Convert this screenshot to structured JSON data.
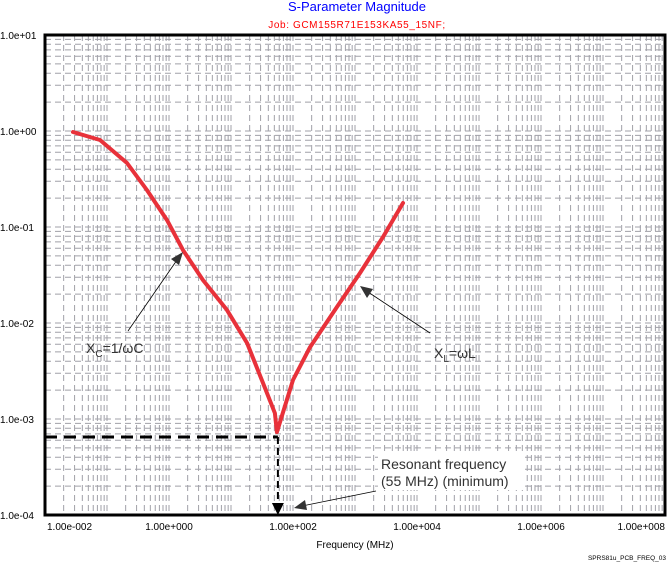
{
  "chart_data": {
    "type": "line",
    "title": "S-Parameter Magnitude",
    "subtitle": "Job: GCM155R71E153KA55_15NF;",
    "xlabel": "Frequency (MHz)",
    "ylabel": "",
    "x_scale": "log",
    "y_scale": "log",
    "xlim": [
      0.01,
      100000000
    ],
    "ylim": [
      0.0001,
      10
    ],
    "grid": true,
    "x_tick_labels": [
      "1.00e-002",
      "1.00e+000",
      "1.00e+002",
      "1.00e+004",
      "1.00e+006",
      "1.00e+008"
    ],
    "y_tick_labels": [
      "1.0e+01",
      "1.0e+00",
      "1.0e-01",
      "1.0e-02",
      "1.0e-03",
      "1.0e-04"
    ],
    "series": [
      {
        "color": "#e8313a",
        "x": [
          0.0283,
          0.077,
          0.21,
          0.44,
          0.93,
          1.68,
          3.53,
          8.6,
          18.1,
          32.8,
          51,
          55,
          100,
          188,
          513,
          1205,
          2830,
          5940
        ],
        "y": [
          0.977,
          0.805,
          0.464,
          0.243,
          0.118,
          0.0575,
          0.028,
          0.0137,
          0.0062,
          0.00237,
          0.00115,
          0.00073,
          0.00255,
          0.0056,
          0.0147,
          0.0332,
          0.0787,
          0.178
        ]
      }
    ],
    "reference_lines": {
      "resonance_frequency": 55,
      "minimum_magnitude": 0.00065
    },
    "annotations": [
      {
        "text_main": "X",
        "text_sub": "C",
        "text_rest": "=1/ωC"
      },
      {
        "text_main": "X",
        "text_sub": "L",
        "text_rest": "=ωL"
      },
      {
        "line1": "Resonant frequency",
        "line2": "(55 MHz) (minimum)"
      }
    ],
    "colors": {
      "title": "#0000ff",
      "subtitle": "#ff0000",
      "curve": "#e8313a",
      "grid": "#a0a0a8"
    }
  },
  "footer": "SPRS81u_PCB_FREQ_03"
}
